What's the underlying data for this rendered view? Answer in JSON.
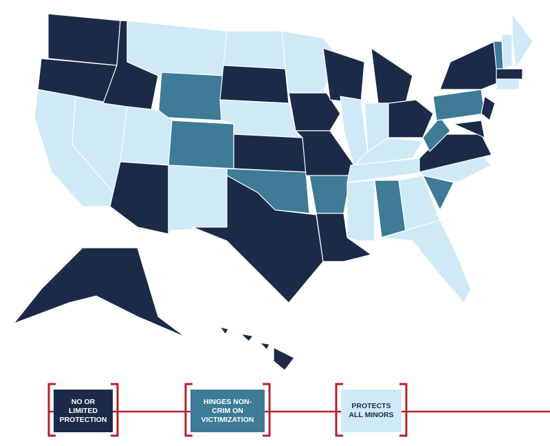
{
  "legend": {
    "items": [
      {
        "label": "NO OR LIMITED PROTECTION",
        "color": "#1b2a47",
        "text_color": "#ffffff"
      },
      {
        "label": "HINGES NON-CRIM ON VICTIMIZATION",
        "color": "#3d7b96",
        "text_color": "#ffffff"
      },
      {
        "label": "PROTECTS ALL MINORS",
        "color": "#cfe9f7",
        "text_color": "#1b2a47"
      }
    ]
  }
}
